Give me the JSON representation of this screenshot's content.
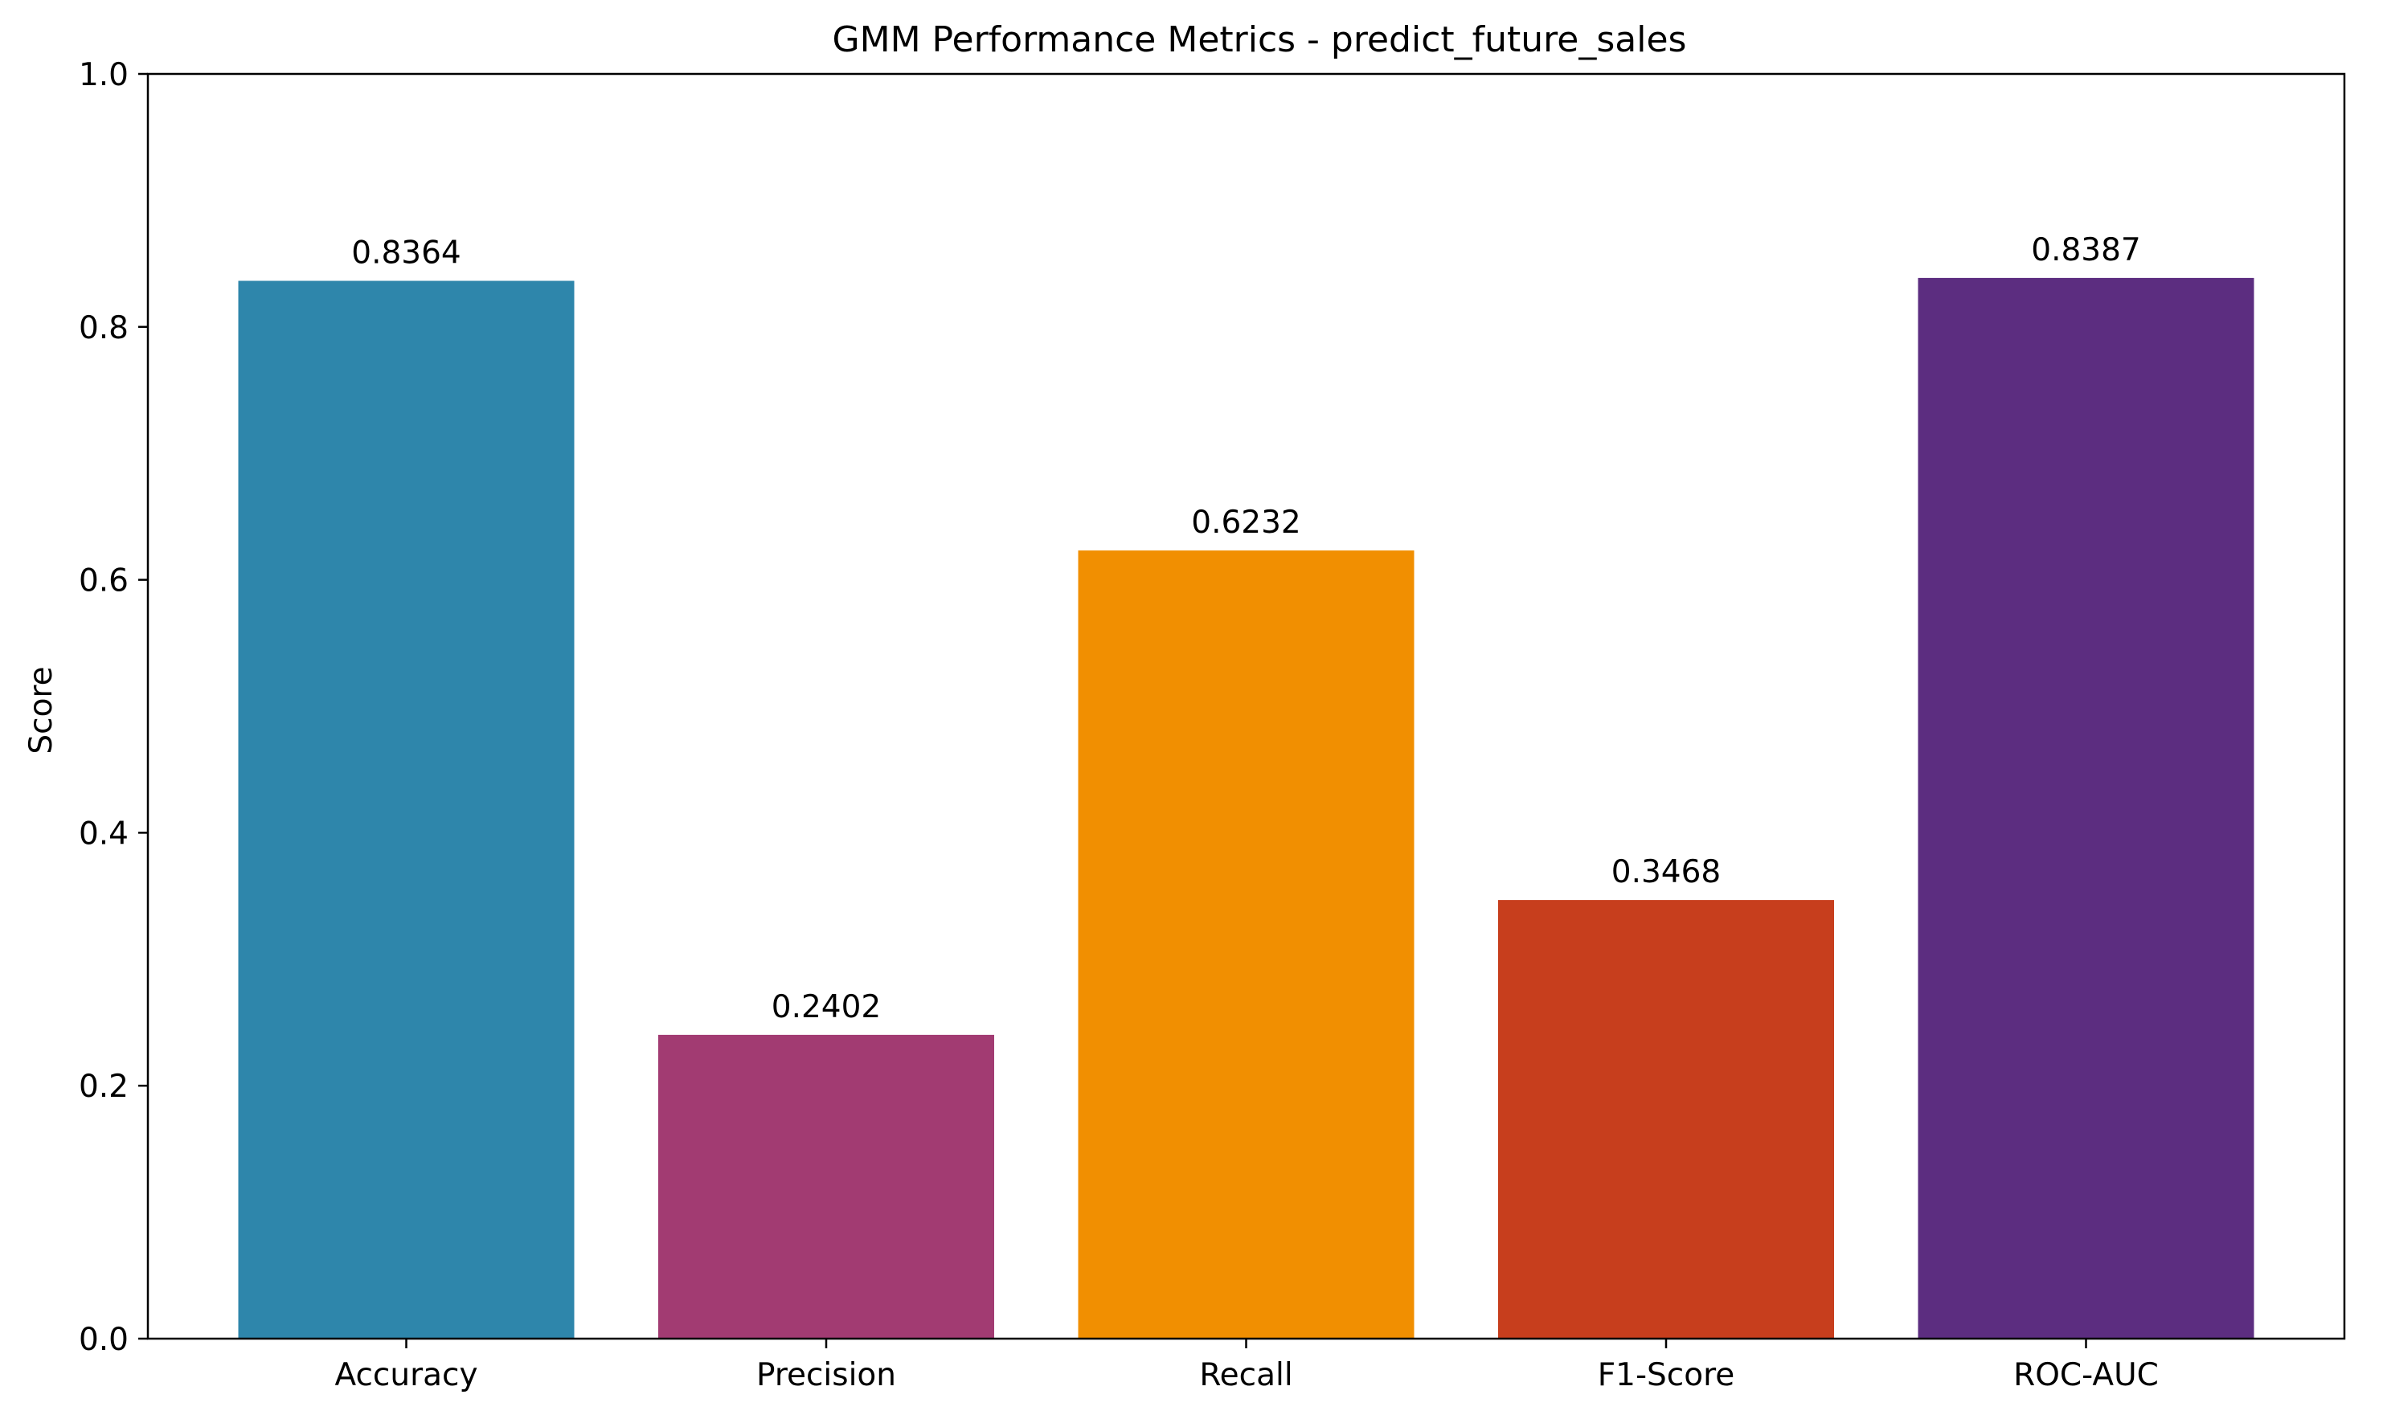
{
  "chart_data": {
    "type": "bar",
    "title": "GMM Performance Metrics - predict_future_sales",
    "xlabel": "",
    "ylabel": "Score",
    "ylim": [
      0,
      1.0
    ],
    "yticks": [
      0.0,
      0.2,
      0.4,
      0.6,
      0.8,
      1.0
    ],
    "ytick_labels": [
      "0.0",
      "0.2",
      "0.4",
      "0.6",
      "0.8",
      "1.0"
    ],
    "categories": [
      "Accuracy",
      "Precision",
      "Recall",
      "F1-Score",
      "ROC-AUC"
    ],
    "values": [
      0.8364,
      0.2402,
      0.6232,
      0.3468,
      0.8387
    ],
    "value_labels": [
      "0.8364",
      "0.2402",
      "0.6232",
      "0.3468",
      "0.8387"
    ],
    "colors": [
      "#2e86ab",
      "#a23b72",
      "#f18f01",
      "#c73e1d",
      "#5c2d80"
    ],
    "grid": false,
    "legend": "none"
  }
}
